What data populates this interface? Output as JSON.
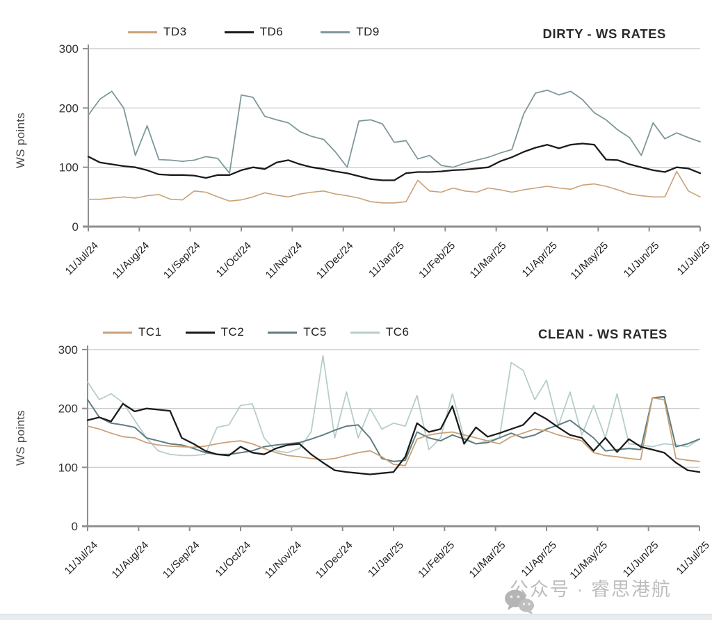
{
  "page": {
    "watermark": {
      "text": "公众号 · 睿思港航",
      "icon": "wechat-icon",
      "color": "#b2b2b2"
    }
  },
  "chart_data": [
    {
      "type": "line",
      "title": "DIRTY - WS RATES",
      "ylabel": "WS points",
      "ylim": [
        0,
        300
      ],
      "yticks": [
        0,
        100,
        200,
        300
      ],
      "grid": "horizontal",
      "grid_color": "#c5c5c5",
      "axis_color": "#8f8f8f",
      "legend_position": "top",
      "x_tick_labels": [
        "11/Jul/24",
        "11/Aug/24",
        "11/Sep/24",
        "11/Oct/24",
        "11/Nov/24",
        "11/Dec/24",
        "11/Jan/25",
        "11/Feb/25",
        "11/Mar/25",
        "11/Apr/25",
        "11/May/25",
        "11/Jun/25",
        "11/Jul/25"
      ],
      "x_note": "weekly samples, 53 points from 11/Jul/24 to 11/Jul/25",
      "series": [
        {
          "name": "TD3",
          "color": "#c9a178",
          "width": 1.6,
          "values": [
            46,
            46,
            48,
            50,
            48,
            52,
            54,
            46,
            45,
            60,
            58,
            50,
            43,
            45,
            50,
            57,
            53,
            50,
            55,
            58,
            60,
            55,
            52,
            48,
            42,
            40,
            40,
            42,
            78,
            60,
            58,
            65,
            60,
            58,
            65,
            62,
            58,
            62,
            65,
            68,
            65,
            63,
            70,
            72,
            68,
            62,
            55,
            52,
            50,
            50,
            93,
            60,
            50
          ]
        },
        {
          "name": "TD6",
          "color": "#1b1b1b",
          "width": 2.3,
          "values": [
            118,
            108,
            105,
            102,
            100,
            95,
            88,
            87,
            87,
            86,
            82,
            87,
            87,
            95,
            100,
            97,
            108,
            112,
            105,
            100,
            97,
            93,
            90,
            85,
            80,
            78,
            78,
            90,
            92,
            92,
            93,
            95,
            96,
            98,
            100,
            110,
            117,
            126,
            133,
            138,
            132,
            138,
            140,
            138,
            113,
            112,
            105,
            100,
            95,
            92,
            100,
            98,
            90
          ]
        },
        {
          "name": "TD9",
          "color": "#7e989b",
          "width": 1.8,
          "values": [
            188,
            215,
            228,
            200,
            120,
            170,
            113,
            112,
            110,
            112,
            118,
            115,
            90,
            222,
            218,
            186,
            180,
            175,
            160,
            152,
            147,
            126,
            100,
            178,
            180,
            173,
            142,
            145,
            114,
            120,
            103,
            100,
            107,
            112,
            117,
            124,
            130,
            190,
            225,
            230,
            222,
            228,
            214,
            192,
            180,
            163,
            150,
            120,
            175,
            148,
            158,
            150,
            143
          ]
        }
      ]
    },
    {
      "type": "line",
      "title": "CLEAN - WS RATES",
      "ylabel": "WS points",
      "ylim": [
        0,
        300
      ],
      "yticks": [
        0,
        100,
        200,
        300
      ],
      "grid": "horizontal",
      "grid_color": "#c5c5c5",
      "axis_color": "#8f8f8f",
      "legend_position": "top",
      "x_tick_labels": [
        "11/Jul/24",
        "11/Aug/24",
        "11/Sep/24",
        "11/Oct/24",
        "11/Nov/24",
        "11/Dec/24",
        "11/Jan/25",
        "11/Feb/25",
        "11/Mar/25",
        "11/Apr/25",
        "11/May/25",
        "11/Jun/25",
        "11/Jul/25"
      ],
      "x_note": "weekly samples, 53 points from 11/Jul/24 to 11/Jul/25",
      "series": [
        {
          "name": "TC1",
          "color": "#c9a178",
          "width": 1.8,
          "values": [
            170,
            165,
            158,
            152,
            150,
            142,
            138,
            136,
            135,
            134,
            136,
            140,
            143,
            145,
            140,
            132,
            125,
            120,
            118,
            115,
            113,
            115,
            120,
            125,
            128,
            118,
            105,
            103,
            148,
            155,
            158,
            160,
            155,
            150,
            145,
            140,
            152,
            158,
            165,
            162,
            155,
            150,
            145,
            125,
            120,
            118,
            115,
            113,
            218,
            215,
            115,
            112,
            110
          ]
        },
        {
          "name": "TC2",
          "color": "#1b1b1b",
          "width": 2.3,
          "values": [
            180,
            185,
            178,
            208,
            195,
            200,
            198,
            196,
            150,
            140,
            128,
            122,
            120,
            135,
            125,
            122,
            132,
            138,
            140,
            122,
            108,
            95,
            92,
            90,
            88,
            90,
            92,
            118,
            175,
            160,
            165,
            204,
            140,
            168,
            152,
            158,
            165,
            172,
            193,
            182,
            168,
            155,
            150,
            128,
            150,
            126,
            148,
            135,
            130,
            125,
            108,
            95,
            92
          ]
        },
        {
          "name": "TC5",
          "color": "#5f7d81",
          "width": 2.0,
          "values": [
            215,
            185,
            175,
            172,
            168,
            150,
            145,
            140,
            138,
            132,
            125,
            122,
            122,
            125,
            128,
            135,
            138,
            140,
            142,
            148,
            155,
            163,
            170,
            172,
            150,
            115,
            110,
            112,
            160,
            150,
            145,
            155,
            148,
            140,
            142,
            150,
            158,
            150,
            155,
            165,
            172,
            180,
            165,
            150,
            128,
            130,
            132,
            130,
            218,
            220,
            135,
            140,
            148
          ]
        },
        {
          "name": "TC6",
          "color": "#b6cecb",
          "width": 1.8,
          "values": [
            245,
            215,
            225,
            210,
            180,
            150,
            128,
            122,
            120,
            120,
            122,
            168,
            172,
            205,
            208,
            150,
            128,
            125,
            132,
            160,
            290,
            150,
            228,
            150,
            200,
            165,
            175,
            170,
            222,
            130,
            150,
            225,
            150,
            140,
            145,
            150,
            278,
            265,
            215,
            248,
            170,
            228,
            155,
            205,
            150,
            225,
            140,
            138,
            135,
            140,
            138,
            135,
            148
          ]
        }
      ]
    }
  ]
}
